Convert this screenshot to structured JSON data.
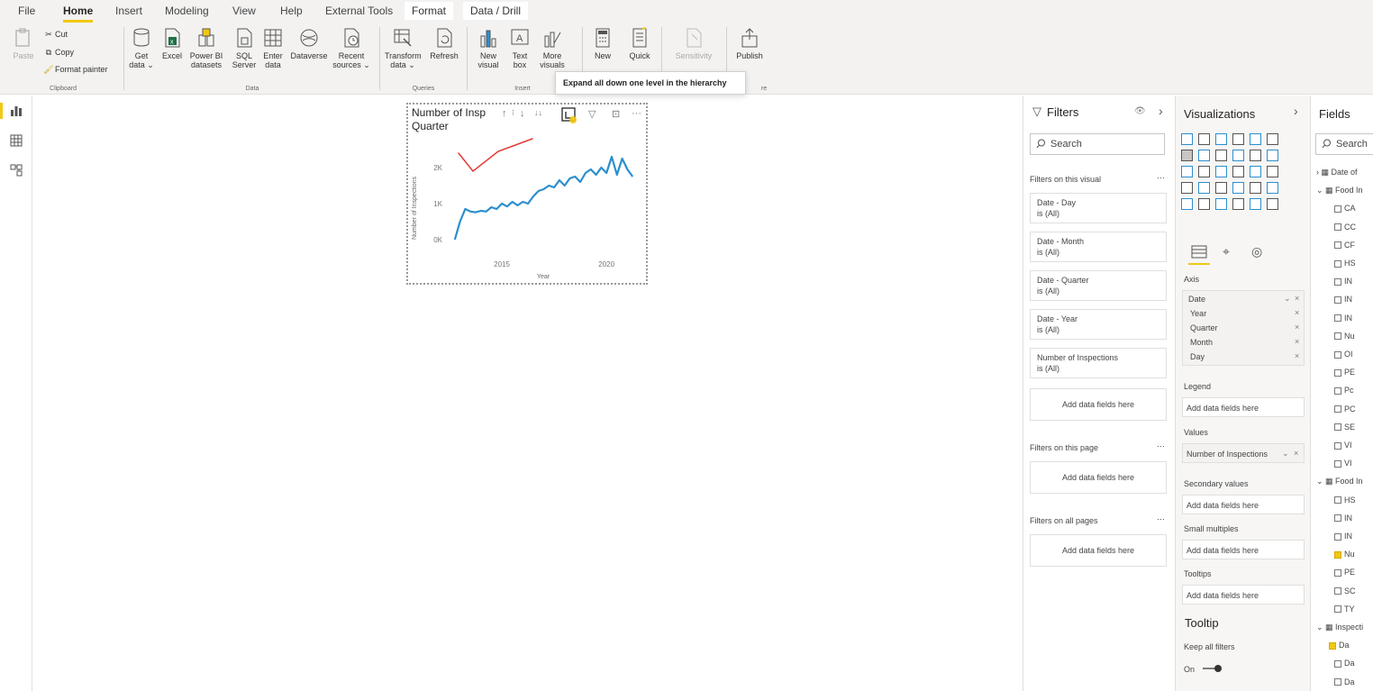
{
  "menu": {
    "items": [
      "File",
      "Home",
      "Insert",
      "Modeling",
      "View",
      "Help",
      "External Tools",
      "Format",
      "Data / Drill"
    ],
    "active": "Home"
  },
  "ribbon": {
    "clipboard": {
      "paste": "Paste",
      "cut": "Cut",
      "copy": "Copy",
      "format_painter": "Format painter",
      "group": "Clipboard"
    },
    "data": {
      "get_data": "Get data ⌄",
      "excel": "Excel",
      "power_bi_datasets": "Power BI datasets",
      "sql_server": "SQL Server",
      "enter_data": "Enter data",
      "dataverse": "Dataverse",
      "recent_sources": "Recent sources ⌄",
      "group": "Data"
    },
    "queries": {
      "transform": "Transform data ⌄",
      "refresh": "Refresh",
      "group": "Queries"
    },
    "insert": {
      "new_visual": "New visual",
      "text_box": "Text box",
      "more_visuals": "More visuals",
      "group": "Insert"
    },
    "calculations": {
      "new": "New",
      "quick": "Quick"
    },
    "sensitivity": "Sensitivity",
    "share": {
      "publish": "Publish",
      "group": "re"
    }
  },
  "tooltip": "Expand all down one level in the hierarchy",
  "visual": {
    "title": "Number of Insp Quarter",
    "title_line1": "Number of Insp",
    "title_line2": "Quarter",
    "more": "···"
  },
  "chart_data": {
    "type": "line",
    "title": "Number of Insp Quarter",
    "xlabel": "Year",
    "ylabel": "Number of Inspections",
    "y_ticks": [
      "0K",
      "1K",
      "2K"
    ],
    "x_ticks": [
      "2015",
      "2020"
    ],
    "ylim": [
      0,
      2500
    ],
    "xlim": [
      2012.5,
      2021.5
    ],
    "series": [
      {
        "color": "#2b8fce",
        "x": [
          2012.75,
          2013.0,
          2013.25,
          2013.5,
          2013.75,
          2014.0,
          2014.25,
          2014.5,
          2014.75,
          2015.0,
          2015.25,
          2015.5,
          2015.75,
          2016.0,
          2016.25,
          2016.5,
          2016.75,
          2017.0,
          2017.25,
          2017.5,
          2017.75,
          2018.0,
          2018.25,
          2018.5,
          2018.75,
          2019.0,
          2019.25,
          2019.5,
          2019.75,
          2020.0,
          2020.25,
          2020.5,
          2020.75,
          2021.0,
          2021.25
        ],
        "y": [
          0,
          500,
          850,
          780,
          760,
          800,
          780,
          900,
          850,
          1000,
          920,
          1050,
          950,
          1050,
          1000,
          1200,
          1350,
          1400,
          1500,
          1450,
          1650,
          1500,
          1700,
          1750,
          1600,
          1850,
          1950,
          1800,
          2000,
          1850,
          2300,
          1800,
          2250,
          1950,
          1750
        ]
      }
    ],
    "grid": false
  },
  "filters": {
    "title": "Filters",
    "search_placeholder": "Search",
    "on_visual": "Filters on this visual",
    "on_page": "Filters on this page",
    "on_all_pages": "Filters on all pages",
    "more": "···",
    "cards": [
      {
        "name": "Date - Day",
        "value": "is (All)"
      },
      {
        "name": "Date - Month",
        "value": "is (All)"
      },
      {
        "name": "Date - Quarter",
        "value": "is (All)"
      },
      {
        "name": "Date - Year",
        "value": "is (All)"
      },
      {
        "name": "Number of Inspections",
        "value": "is (All)"
      }
    ],
    "add_fields": "Add data fields here"
  },
  "visualizations": {
    "title": "Visualizations",
    "axis_label": "Axis",
    "axis_field": "Date",
    "axis_children": [
      "Year",
      "Quarter",
      "Month",
      "Day"
    ],
    "legend_label": "Legend",
    "values_label": "Values",
    "values_field": "Number of Inspections",
    "secondary_label": "Secondary values",
    "small_multiples_label": "Small multiples",
    "tooltips_label": "Tooltips",
    "add_fields": "Add data fields here",
    "tooltip_section": "Tooltip",
    "keep_all_filters": "Keep all filters",
    "toggle_state": "On"
  },
  "fields": {
    "title": "Fields",
    "search_placeholder": "Search",
    "rows": [
      "Date of",
      "Food In",
      "CA",
      "CC",
      "CF",
      "HS",
      "IN",
      "IN",
      "IN",
      "Nu",
      "OI",
      "PE",
      "Pc",
      "PC",
      "SE",
      "VI",
      "VI",
      "Food In",
      "HS",
      "IN",
      "IN",
      "Nu",
      "PE",
      "SC",
      "TY",
      "Inspecti",
      "Da",
      "Da",
      "Da"
    ]
  }
}
